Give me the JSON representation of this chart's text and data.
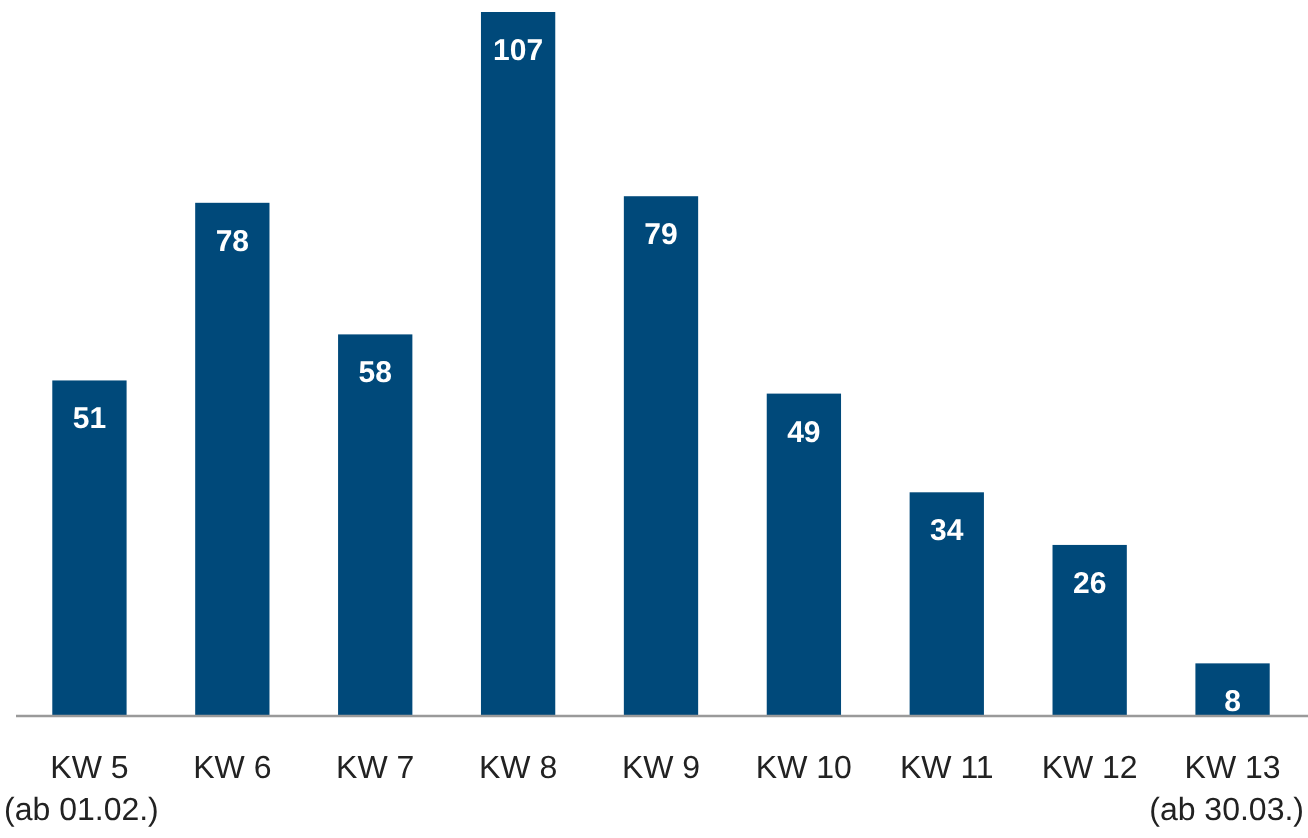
{
  "chart_data": {
    "type": "bar",
    "categories": [
      "KW 5\n(ab 01.02.)",
      "KW 6",
      "KW 7",
      "KW 8",
      "KW 9",
      "KW 10",
      "KW 11",
      "KW 12",
      "KW 13\n(ab 30.03.)"
    ],
    "values": [
      51,
      78,
      58,
      107,
      79,
      49,
      34,
      26,
      8
    ],
    "color": "#00497a",
    "data_labels": true
  }
}
